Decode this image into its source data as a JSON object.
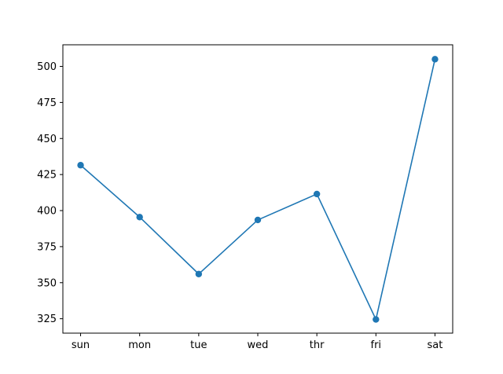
{
  "chart_data": {
    "type": "line",
    "categories": [
      "sun",
      "mon",
      "tue",
      "wed",
      "thr",
      "fri",
      "sat"
    ],
    "values": [
      431.5,
      395.5,
      356,
      393.5,
      411.5,
      324.5,
      505
    ],
    "ylim": [
      315,
      515
    ],
    "yticks": [
      325,
      350,
      375,
      400,
      425,
      450,
      475,
      500
    ],
    "color": "#1f77b4",
    "marker": "circle",
    "grid": false,
    "legend": "none"
  }
}
